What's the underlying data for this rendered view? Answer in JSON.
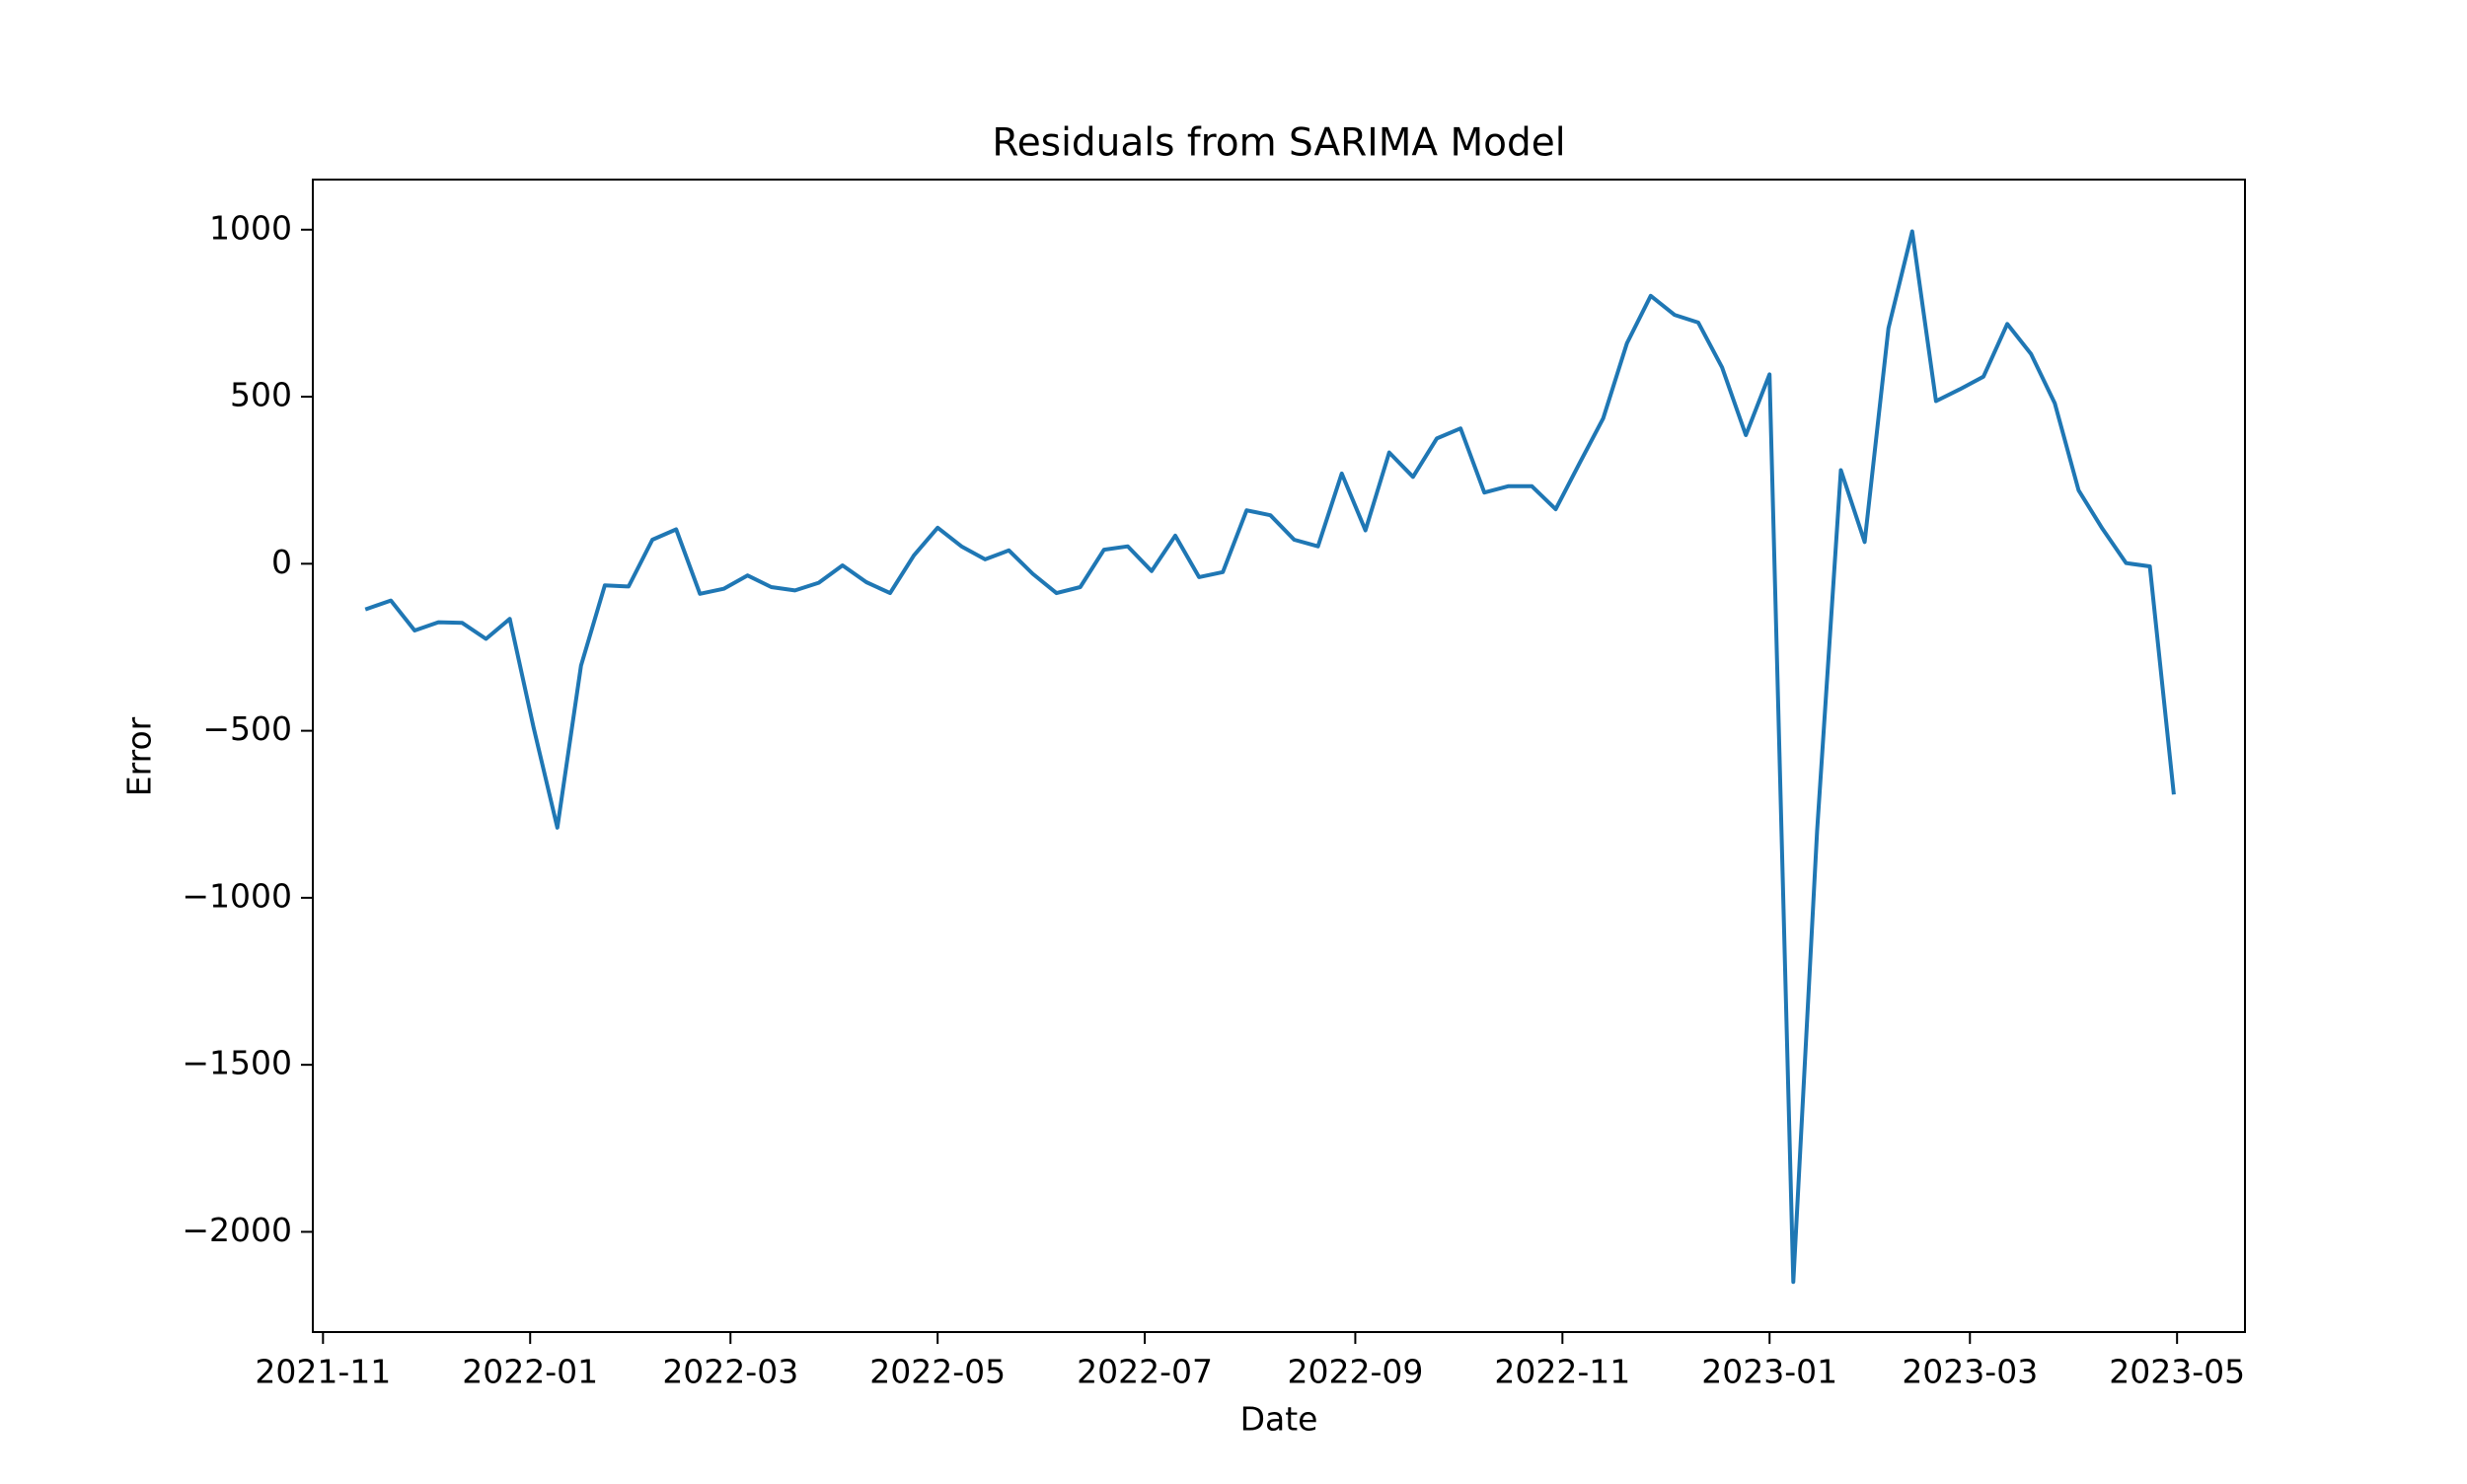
{
  "chart_data": {
    "type": "line",
    "title": "Residuals from SARIMA Model",
    "xlabel": "Date",
    "ylabel": "Error",
    "xlim": [
      "2021-10-29",
      "2023-05-21"
    ],
    "ylim": [
      -2300,
      1150
    ],
    "x_ticks": [
      "2021-11",
      "2022-01",
      "2022-03",
      "2022-05",
      "2022-07",
      "2022-09",
      "2022-11",
      "2023-01",
      "2023-03",
      "2023-05"
    ],
    "y_ticks": [
      1000,
      500,
      0,
      -500,
      -1000,
      -1500,
      -2000
    ],
    "y_tick_labels": [
      "1000",
      "500",
      "0",
      "−500",
      "−1000",
      "−1500",
      "−2000"
    ],
    "grid": false,
    "series": [
      {
        "color": "#1f77b4",
        "x": [
          "2021-11-14",
          "2021-11-21",
          "2021-11-28",
          "2021-12-05",
          "2021-12-12",
          "2021-12-19",
          "2021-12-26",
          "2022-01-02",
          "2022-01-09",
          "2022-01-16",
          "2022-01-23",
          "2022-01-30",
          "2022-02-06",
          "2022-02-13",
          "2022-02-20",
          "2022-02-27",
          "2022-03-06",
          "2022-03-13",
          "2022-03-20",
          "2022-03-27",
          "2022-04-03",
          "2022-04-10",
          "2022-04-17",
          "2022-04-24",
          "2022-05-01",
          "2022-05-08",
          "2022-05-15",
          "2022-05-22",
          "2022-05-29",
          "2022-06-05",
          "2022-06-12",
          "2022-06-19",
          "2022-06-26",
          "2022-07-03",
          "2022-07-10",
          "2022-07-17",
          "2022-07-24",
          "2022-07-31",
          "2022-08-07",
          "2022-08-14",
          "2022-08-21",
          "2022-08-28",
          "2022-09-04",
          "2022-09-11",
          "2022-09-18",
          "2022-09-25",
          "2022-10-02",
          "2022-10-09",
          "2022-10-16",
          "2022-10-23",
          "2022-10-30",
          "2022-11-06",
          "2022-11-13",
          "2022-11-20",
          "2022-11-27",
          "2022-12-04",
          "2022-12-11",
          "2022-12-18",
          "2022-12-25",
          "2023-01-01",
          "2023-01-08",
          "2023-01-15",
          "2023-01-22",
          "2023-01-29",
          "2023-02-05",
          "2023-02-12",
          "2023-02-19",
          "2023-02-26",
          "2023-03-05",
          "2023-03-12",
          "2023-03-19",
          "2023-03-26",
          "2023-04-02",
          "2023-04-09",
          "2023-04-16",
          "2023-04-23",
          "2023-04-30"
        ],
        "values": [
          -135,
          -110,
          -200,
          -175,
          -177,
          -225,
          -165,
          -490,
          -790,
          -305,
          -65,
          -68,
          72,
          103,
          -90,
          -75,
          -35,
          -70,
          -80,
          -57,
          -5,
          -55,
          -88,
          25,
          108,
          52,
          13,
          40,
          -30,
          -88,
          -70,
          42,
          52,
          -22,
          84,
          -40,
          -25,
          160,
          145,
          72,
          52,
          270,
          100,
          333,
          260,
          375,
          405,
          213,
          232,
          232,
          163,
          300,
          435,
          660,
          802,
          745,
          722,
          588,
          385,
          567,
          -2150,
          -800,
          280,
          65,
          705,
          995,
          487,
          522,
          560,
          718,
          628,
          480,
          220,
          105,
          2,
          -8,
          -685
        ]
      }
    ]
  }
}
